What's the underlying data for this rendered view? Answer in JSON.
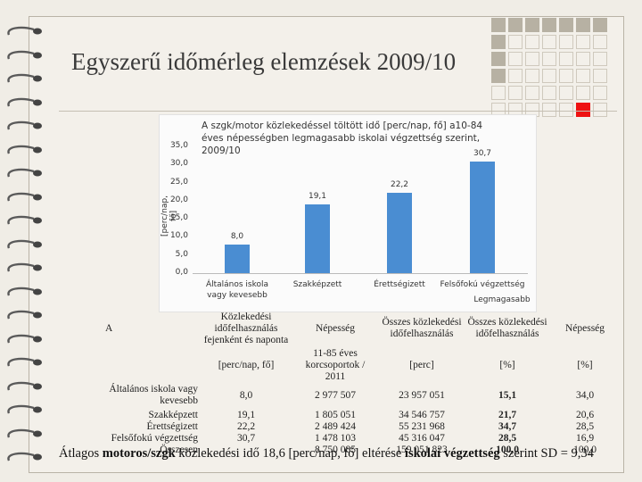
{
  "slide": {
    "title": "Egyszerű időmérleg elemzések 2009/10",
    "footer": {
      "parts": [
        {
          "text": "Átlagos ",
          "bold": false
        },
        {
          "text": "motoros/szgk",
          "bold": true
        },
        {
          "text": " közlekedési idő 18,6 [perc/nap, fő] eltérése ",
          "bold": false
        },
        {
          "text": "iskolai végzettség",
          "bold": true
        },
        {
          "text": " szerint SD = 9,34",
          "bold": false
        }
      ]
    }
  },
  "decor": {
    "grid_pattern": [
      [
        "d",
        "d",
        "d",
        "d",
        "d",
        "d",
        "d"
      ],
      [
        "d",
        "l",
        "l",
        "l",
        "l",
        "l",
        "l"
      ],
      [
        "d",
        "l",
        "l",
        "l",
        "l",
        "l",
        "l"
      ],
      [
        "d",
        "l",
        "l",
        "l",
        "l",
        "l",
        "l"
      ],
      [
        "l",
        "l",
        "l",
        "l",
        "l",
        "l",
        "l"
      ],
      [
        "l",
        "l",
        "l",
        "l",
        "l",
        "h",
        "l"
      ]
    ],
    "colors": {
      "square_dark": "#b7b1a3",
      "square_highlight": "#ee1111"
    }
  },
  "chart_data": {
    "type": "bar",
    "title": "A szgk/motor közlekedéssel töltött idő [perc/nap, fő] a10-84 éves népességben legmagasabb iskolai végzettség szerint, 2009/10",
    "ylabel": "[perc/nap, fő]",
    "xlabel": "Legmagasabb",
    "categories": [
      "Általános iskola vagy kevesebb",
      "Szakképzett",
      "Érettségizett",
      "Felsőfokú végzettség"
    ],
    "values": [
      8.0,
      19.1,
      22.2,
      30.7
    ],
    "data_labels": [
      "8,0",
      "19,1",
      "22,2",
      "30,7"
    ],
    "yticks": [
      "0,0",
      "5,0",
      "10,0",
      "15,0",
      "20,0",
      "25,0",
      "30,0",
      "35,0"
    ],
    "ylim": [
      0,
      35
    ],
    "bar_color": "#4a8dd2",
    "grid": false,
    "legend": "none"
  },
  "table": {
    "corner": "A",
    "headers": [
      "Közlekedési időfelhasználás fejenként és naponta",
      "Népesség",
      "Összes közlekedési időfelhasználás",
      "Összes közlekedési időfelhasználás",
      "Népesség"
    ],
    "units": [
      "[perc/nap, fő]",
      "11-85 éves korcsoportok / 2011",
      "[perc]",
      "[%]",
      "[%]"
    ],
    "first_row": {
      "label": "Általános iskola vagy kevesebb",
      "values": [
        "8,0",
        "2 977 507",
        "23 957 051",
        "15,1",
        "34,0"
      ]
    },
    "other_labels": [
      "Szakképzett",
      "Érettségizett",
      "Felsőfokú végzettség",
      "Összesen"
    ],
    "other_cols": [
      [
        "19,1",
        "22,2",
        "30,7"
      ],
      [
        "1 805 051",
        "2 489 424",
        "1 478 103",
        "8 750 085"
      ],
      [
        "34 546 757",
        "55 231 968",
        "45 316 047",
        "159 051 823"
      ],
      [
        "21,7",
        "34,7",
        "28,5",
        "100,0"
      ],
      [
        "20,6",
        "28,5",
        "16,9",
        "100,0"
      ]
    ]
  }
}
